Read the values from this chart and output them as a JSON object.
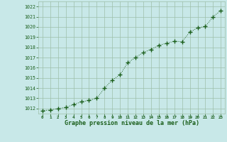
{
  "x": [
    0,
    1,
    2,
    3,
    4,
    5,
    6,
    7,
    8,
    9,
    10,
    11,
    12,
    13,
    14,
    15,
    16,
    17,
    18,
    19,
    20,
    21,
    22,
    23
  ],
  "y": [
    1011.8,
    1011.85,
    1012.0,
    1012.1,
    1012.4,
    1012.65,
    1012.8,
    1013.0,
    1014.0,
    1014.8,
    1015.3,
    1016.5,
    1017.0,
    1017.5,
    1017.8,
    1018.2,
    1018.4,
    1018.6,
    1018.55,
    1019.5,
    1019.9,
    1020.05,
    1021.0,
    1021.6
  ],
  "ylim": [
    1011.5,
    1022.5
  ],
  "yticks": [
    1012,
    1013,
    1014,
    1015,
    1016,
    1017,
    1018,
    1019,
    1020,
    1021,
    1022
  ],
  "xlim": [
    -0.5,
    23.5
  ],
  "line_color": "#1a5e1a",
  "marker_color": "#1a5e1a",
  "bg_color": "#c8e8e8",
  "grid_color": "#9dbfaa",
  "xlabel": "Graphe pression niveau de la mer (hPa)",
  "xlabel_color": "#1a5e1a",
  "tick_color": "#1a5e1a"
}
